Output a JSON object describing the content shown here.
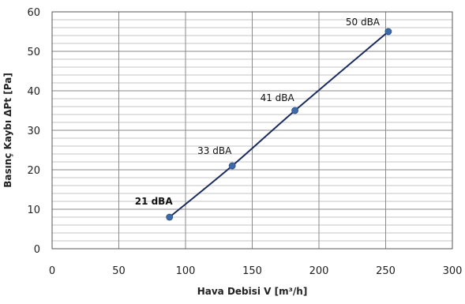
{
  "chart_data": {
    "type": "line",
    "xlabel": "Hava Debisi V [m³/h]",
    "ylabel": "Basınç Kaybı ΔPt [Pa]",
    "xlim": [
      0,
      300
    ],
    "ylim": [
      0,
      60
    ],
    "xticks": [
      "0",
      "50",
      "100",
      "150",
      "200",
      "250",
      "300"
    ],
    "yticks": [
      "0",
      "10",
      "20",
      "30",
      "40",
      "50",
      "60"
    ],
    "grid": true,
    "series": [
      {
        "color": "#1a2b5e",
        "marker_color": "#3d6aa8",
        "x": [
          88,
          135,
          182,
          252
        ],
        "y": [
          8,
          21,
          35,
          55
        ],
        "labels": [
          "21 dBA",
          "33 dBA",
          "41 dBA",
          "50 dBA"
        ]
      }
    ]
  }
}
